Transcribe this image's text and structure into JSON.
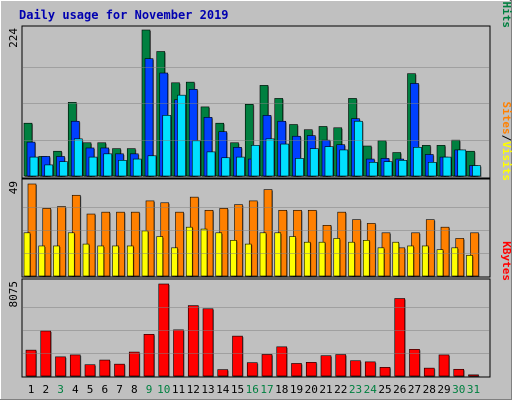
{
  "title": "Daily usage for November 2019",
  "colors": {
    "background": "#c0c0c0",
    "title": "#0000b0",
    "hits": "#008040",
    "files": "#0040ff",
    "pages": "#00e0ff",
    "visits": "#ffff00",
    "sites": "#ff8000",
    "kbytes": "#ff0000",
    "weekday_label": "#000000",
    "weekend_label": "#008040"
  },
  "chart_data": [
    {
      "type": "bar",
      "panel": "top",
      "max_label": "224",
      "ylim": [
        0,
        224
      ],
      "legend": [
        {
          "label": "Hits",
          "color": "#008040"
        },
        {
          "label": "Files",
          "color": "#0040ff"
        },
        {
          "label": "Pages",
          "color": "#00e0ff"
        }
      ],
      "legend_separator": "/",
      "categories": [
        "1",
        "2",
        "3",
        "4",
        "5",
        "6",
        "7",
        "8",
        "9",
        "10",
        "11",
        "12",
        "13",
        "14",
        "15",
        "16",
        "17",
        "18",
        "19",
        "20",
        "21",
        "22",
        "23",
        "24",
        "25",
        "26",
        "27",
        "28",
        "29",
        "30",
        "31"
      ],
      "series": [
        {
          "name": "Hits",
          "values": [
            81,
            30,
            38,
            113,
            51,
            51,
            42,
            42,
            224,
            191,
            143,
            144,
            106,
            81,
            51,
            110,
            139,
            119,
            79,
            71,
            76,
            74,
            119,
            46,
            54,
            36,
            157,
            47,
            47,
            55,
            38
          ]
        },
        {
          "name": "Files",
          "values": [
            52,
            30,
            30,
            84,
            43,
            43,
            34,
            34,
            180,
            158,
            117,
            133,
            90,
            68,
            44,
            26,
            93,
            84,
            61,
            62,
            55,
            48,
            88,
            26,
            27,
            26,
            142,
            33,
            29,
            40,
            16
          ]
        },
        {
          "name": "Pages",
          "values": [
            29,
            17,
            22,
            57,
            29,
            34,
            24,
            26,
            31,
            93,
            124,
            54,
            37,
            28,
            29,
            47,
            57,
            49,
            27,
            42,
            45,
            40,
            84,
            21,
            22,
            24,
            44,
            21,
            29,
            40,
            16
          ]
        }
      ]
    },
    {
      "type": "bar",
      "panel": "middle",
      "max_label": "49",
      "ylim": [
        0,
        49
      ],
      "legend": [
        {
          "label": "Visits",
          "color": "#ffff00"
        },
        {
          "label": "Sites",
          "color": "#ff8000"
        }
      ],
      "legend_separator": "/",
      "categories": [
        "1",
        "2",
        "3",
        "4",
        "5",
        "6",
        "7",
        "8",
        "9",
        "10",
        "11",
        "12",
        "13",
        "14",
        "15",
        "16",
        "17",
        "18",
        "19",
        "20",
        "21",
        "22",
        "23",
        "24",
        "25",
        "26",
        "27",
        "28",
        "29",
        "30",
        "31"
      ],
      "series": [
        {
          "name": "Visits",
          "values": [
            23,
            16,
            16,
            23,
            17,
            16,
            16,
            16,
            24,
            21,
            15,
            26,
            25,
            23,
            19,
            17,
            23,
            23,
            21,
            18,
            18,
            20,
            18,
            19,
            15,
            18,
            16,
            16,
            14,
            15,
            11
          ]
        },
        {
          "name": "Sites",
          "values": [
            49,
            36,
            37,
            43,
            33,
            34,
            34,
            34,
            40,
            39,
            34,
            42,
            35,
            36,
            38,
            40,
            46,
            35,
            35,
            35,
            27,
            34,
            30,
            28,
            23,
            15,
            23,
            30,
            26,
            20,
            23
          ]
        }
      ]
    },
    {
      "type": "bar",
      "panel": "bottom",
      "max_label": "8075",
      "ylim": [
        0,
        8075
      ],
      "legend": [
        {
          "label": "KBytes",
          "color": "#ff0000"
        }
      ],
      "categories": [
        "1",
        "2",
        "3",
        "4",
        "5",
        "6",
        "7",
        "8",
        "9",
        "10",
        "11",
        "12",
        "13",
        "14",
        "15",
        "16",
        "17",
        "18",
        "19",
        "20",
        "21",
        "22",
        "23",
        "24",
        "25",
        "26",
        "27",
        "28",
        "29",
        "30",
        "31"
      ],
      "series": [
        {
          "name": "KBytes",
          "values": [
            2270,
            3950,
            1680,
            1850,
            990,
            1400,
            1040,
            2100,
            3660,
            8075,
            4050,
            6180,
            5900,
            560,
            3500,
            1170,
            1890,
            2560,
            1100,
            1200,
            1780,
            1880,
            1340,
            1240,
            760,
            6800,
            2340,
            690,
            1850,
            590,
            100
          ]
        }
      ]
    }
  ],
  "x_labels": [
    {
      "text": "1",
      "weekend": false
    },
    {
      "text": "2",
      "weekend": false
    },
    {
      "text": "3",
      "weekend": true
    },
    {
      "text": "4",
      "weekend": false
    },
    {
      "text": "5",
      "weekend": false
    },
    {
      "text": "6",
      "weekend": false
    },
    {
      "text": "7",
      "weekend": false
    },
    {
      "text": "8",
      "weekend": false
    },
    {
      "text": "9",
      "weekend": true
    },
    {
      "text": "10",
      "weekend": true
    },
    {
      "text": "11",
      "weekend": false
    },
    {
      "text": "12",
      "weekend": false
    },
    {
      "text": "13",
      "weekend": false
    },
    {
      "text": "14",
      "weekend": false
    },
    {
      "text": "15",
      "weekend": false
    },
    {
      "text": "16",
      "weekend": true
    },
    {
      "text": "17",
      "weekend": true
    },
    {
      "text": "18",
      "weekend": false
    },
    {
      "text": "19",
      "weekend": false
    },
    {
      "text": "20",
      "weekend": false
    },
    {
      "text": "21",
      "weekend": false
    },
    {
      "text": "22",
      "weekend": false
    },
    {
      "text": "23",
      "weekend": true
    },
    {
      "text": "24",
      "weekend": true
    },
    {
      "text": "25",
      "weekend": false
    },
    {
      "text": "26",
      "weekend": false
    },
    {
      "text": "27",
      "weekend": false
    },
    {
      "text": "28",
      "weekend": false
    },
    {
      "text": "29",
      "weekend": false
    },
    {
      "text": "30",
      "weekend": true
    },
    {
      "text": "31",
      "weekend": true
    }
  ]
}
